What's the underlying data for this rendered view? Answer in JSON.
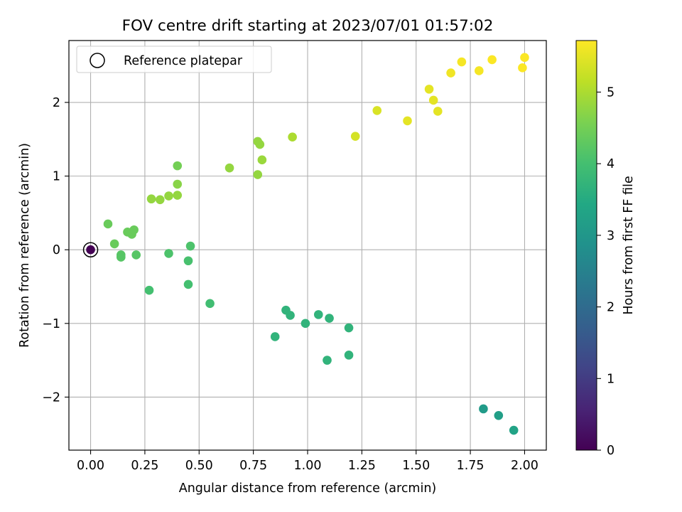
{
  "chart_data": {
    "type": "scatter",
    "title": "FOV centre drift starting at 2023/07/01 01:57:02",
    "xlabel": "Angular distance from reference (arcmin)",
    "ylabel": "Rotation from reference (arcmin)",
    "xlim": [
      -0.1,
      2.1
    ],
    "ylim": [
      -2.72,
      2.84
    ],
    "xticks": [
      0.0,
      0.25,
      0.5,
      0.75,
      1.0,
      1.25,
      1.5,
      1.75,
      2.0
    ],
    "xtick_labels": [
      "0.00",
      "0.25",
      "0.50",
      "0.75",
      "1.00",
      "1.25",
      "1.50",
      "1.75",
      "2.00"
    ],
    "yticks": [
      -2,
      -1,
      0,
      1,
      2
    ],
    "ytick_labels": [
      "−2",
      "−1",
      "0",
      "1",
      "2"
    ],
    "grid": true,
    "legend": {
      "position": "top-left",
      "entries": [
        {
          "label": "Reference platepar",
          "marker": "open-circle"
        }
      ]
    },
    "reference_point": {
      "x": 0.0,
      "y": 0.0,
      "hours": 0
    },
    "colorbar": {
      "label": "Hours from first FF file",
      "colormap": "viridis",
      "range": [
        0,
        5.72
      ],
      "ticks": [
        0,
        1,
        2,
        3,
        4,
        5
      ],
      "tick_labels": [
        "0",
        "1",
        "2",
        "3",
        "4",
        "5"
      ]
    },
    "points": [
      {
        "x": 0.0,
        "y": 0.0,
        "hours": 0
      },
      {
        "x": 1.81,
        "y": -2.16,
        "hours": 3.1
      },
      {
        "x": 1.88,
        "y": -2.25,
        "hours": 3.2
      },
      {
        "x": 1.95,
        "y": -2.45,
        "hours": 3.3
      },
      {
        "x": 0.85,
        "y": -1.18,
        "hours": 3.7
      },
      {
        "x": 0.9,
        "y": -0.82,
        "hours": 3.7
      },
      {
        "x": 0.92,
        "y": -0.89,
        "hours": 3.7
      },
      {
        "x": 0.99,
        "y": -1.0,
        "hours": 3.7
      },
      {
        "x": 1.05,
        "y": -0.88,
        "hours": 3.7
      },
      {
        "x": 1.09,
        "y": -1.5,
        "hours": 3.7
      },
      {
        "x": 1.1,
        "y": -0.93,
        "hours": 3.7
      },
      {
        "x": 1.19,
        "y": -1.06,
        "hours": 3.7
      },
      {
        "x": 1.19,
        "y": -1.43,
        "hours": 3.7
      },
      {
        "x": 0.55,
        "y": -0.73,
        "hours": 3.95
      },
      {
        "x": 0.27,
        "y": -0.55,
        "hours": 4.0
      },
      {
        "x": 0.45,
        "y": -0.47,
        "hours": 4.0
      },
      {
        "x": 0.45,
        "y": -0.15,
        "hours": 4.05
      },
      {
        "x": 0.36,
        "y": -0.05,
        "hours": 4.1
      },
      {
        "x": 0.46,
        "y": 0.05,
        "hours": 4.1
      },
      {
        "x": 0.14,
        "y": -0.07,
        "hours": 4.2
      },
      {
        "x": 0.14,
        "y": -0.1,
        "hours": 4.2
      },
      {
        "x": 0.21,
        "y": -0.07,
        "hours": 4.2
      },
      {
        "x": 0.11,
        "y": 0.08,
        "hours": 4.4
      },
      {
        "x": 0.08,
        "y": 0.35,
        "hours": 4.4
      },
      {
        "x": 0.17,
        "y": 0.24,
        "hours": 4.4
      },
      {
        "x": 0.19,
        "y": 0.21,
        "hours": 4.4
      },
      {
        "x": 0.2,
        "y": 0.27,
        "hours": 4.4
      },
      {
        "x": 0.4,
        "y": 1.14,
        "hours": 4.5
      },
      {
        "x": 0.4,
        "y": 0.89,
        "hours": 4.7
      },
      {
        "x": 0.28,
        "y": 0.69,
        "hours": 4.8
      },
      {
        "x": 0.32,
        "y": 0.68,
        "hours": 4.8
      },
      {
        "x": 0.36,
        "y": 0.73,
        "hours": 4.8
      },
      {
        "x": 0.4,
        "y": 0.74,
        "hours": 4.8
      },
      {
        "x": 0.64,
        "y": 1.11,
        "hours": 4.8
      },
      {
        "x": 0.77,
        "y": 1.02,
        "hours": 4.8
      },
      {
        "x": 0.77,
        "y": 1.47,
        "hours": 4.8
      },
      {
        "x": 0.78,
        "y": 1.43,
        "hours": 4.8
      },
      {
        "x": 0.79,
        "y": 1.22,
        "hours": 4.85
      },
      {
        "x": 0.93,
        "y": 1.53,
        "hours": 5.0
      },
      {
        "x": 1.22,
        "y": 1.54,
        "hours": 5.35
      },
      {
        "x": 1.32,
        "y": 1.89,
        "hours": 5.4
      },
      {
        "x": 1.46,
        "y": 1.75,
        "hours": 5.5
      },
      {
        "x": 1.56,
        "y": 2.18,
        "hours": 5.5
      },
      {
        "x": 1.58,
        "y": 2.03,
        "hours": 5.5
      },
      {
        "x": 1.6,
        "y": 1.88,
        "hours": 5.5
      },
      {
        "x": 1.66,
        "y": 2.4,
        "hours": 5.6
      },
      {
        "x": 1.71,
        "y": 2.55,
        "hours": 5.65
      },
      {
        "x": 1.79,
        "y": 2.43,
        "hours": 5.65
      },
      {
        "x": 1.85,
        "y": 2.58,
        "hours": 5.7
      },
      {
        "x": 1.99,
        "y": 2.47,
        "hours": 5.7
      },
      {
        "x": 2.0,
        "y": 2.61,
        "hours": 5.7
      }
    ]
  }
}
